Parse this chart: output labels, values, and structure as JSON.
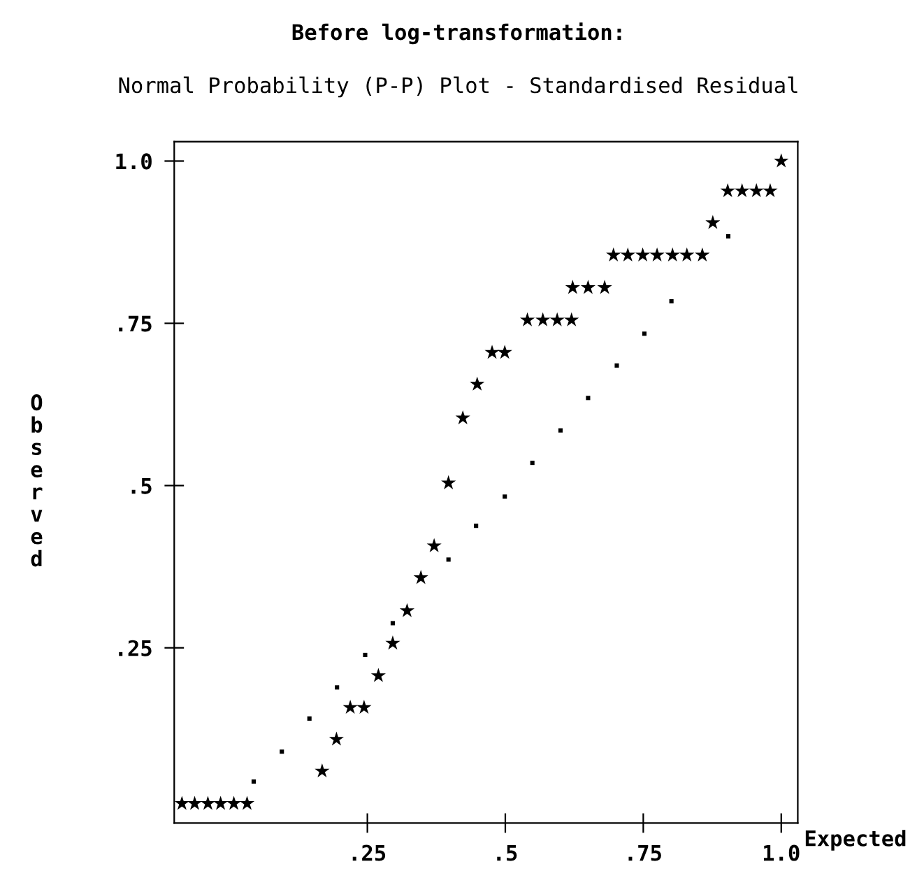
{
  "chart_data": {
    "type": "scatter",
    "title": "Before log-transformation:",
    "subtitle": "Normal Probability (P-P) Plot - Standardised Residual",
    "xlabel": "Expected",
    "ylabel": "Observed",
    "xlim": [
      -0.1,
      1.03
    ],
    "ylim": [
      -0.02,
      1.03
    ],
    "xticks": [
      {
        "value": 0.25,
        "label": ".25"
      },
      {
        "value": 0.5,
        "label": ".5"
      },
      {
        "value": 0.75,
        "label": ".75"
      },
      {
        "value": 1.0,
        "label": "1.0"
      }
    ],
    "yticks": [
      {
        "value": 0.25,
        "label": ".25"
      },
      {
        "value": 0.5,
        "label": ".5"
      },
      {
        "value": 0.75,
        "label": ".75"
      },
      {
        "value": 1.0,
        "label": "1.0"
      }
    ],
    "grid": false,
    "legend": false,
    "series": [
      {
        "color": "#000000",
        "marker": "star",
        "x": [
          -0.086,
          -0.063,
          -0.039,
          -0.016,
          0.008,
          0.032,
          0.168,
          0.194,
          0.219,
          0.244,
          0.27,
          0.296,
          0.322,
          0.347,
          0.371,
          0.397,
          0.423,
          0.449,
          0.476,
          0.499,
          0.54,
          0.568,
          0.594,
          0.62,
          0.622,
          0.65,
          0.68,
          0.696,
          0.722,
          0.749,
          0.775,
          0.803,
          0.829,
          0.857,
          0.876,
          0.903,
          0.929,
          0.955,
          0.98,
          1.0
        ],
        "values": [
          0.01,
          0.01,
          0.01,
          0.01,
          0.01,
          0.01,
          0.06,
          0.109,
          0.158,
          0.158,
          0.207,
          0.257,
          0.307,
          0.358,
          0.407,
          0.504,
          0.604,
          0.656,
          0.705,
          0.705,
          0.755,
          0.755,
          0.755,
          0.755,
          0.805,
          0.805,
          0.805,
          0.855,
          0.855,
          0.855,
          0.855,
          0.855,
          0.855,
          0.855,
          0.905,
          0.954,
          0.954,
          0.954,
          0.954,
          1.0
        ]
      },
      {
        "color": "#000000",
        "marker": "square",
        "x": [
          0.044,
          0.095,
          0.145,
          0.195,
          0.246,
          0.296,
          0.397,
          0.447,
          0.499,
          0.549,
          0.6,
          0.65,
          0.702,
          0.752,
          0.801,
          0.904
        ],
        "values": [
          0.044,
          0.09,
          0.141,
          0.189,
          0.239,
          0.288,
          0.386,
          0.438,
          0.483,
          0.535,
          0.585,
          0.635,
          0.685,
          0.734,
          0.784,
          0.884
        ]
      }
    ]
  }
}
